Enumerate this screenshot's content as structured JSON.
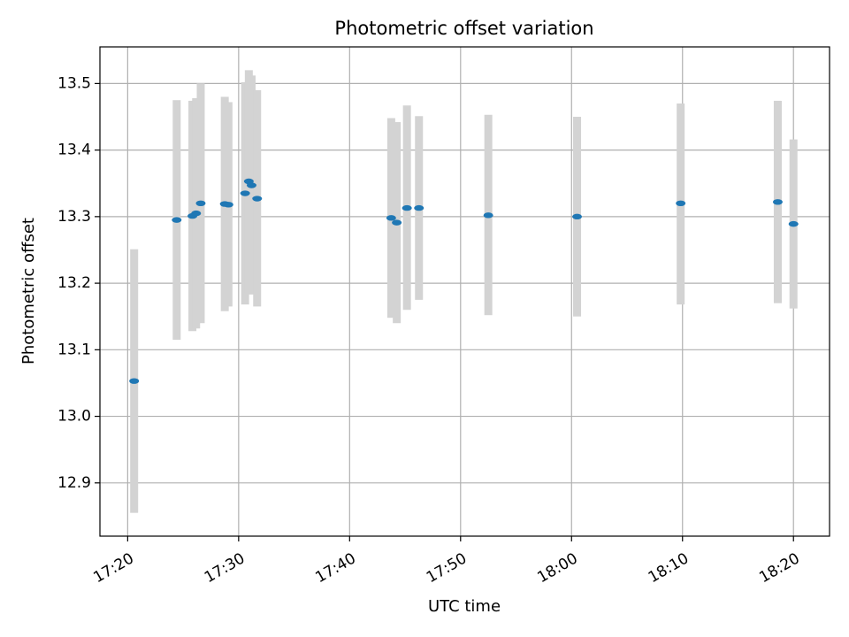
{
  "chart_data": {
    "type": "scatter",
    "title": "Photometric offset variation",
    "xlabel": "UTC time",
    "ylabel": "Photometric offset",
    "x_axis_type": "time",
    "xlim": [
      "17:17:30",
      "18:23:15"
    ],
    "ylim": [
      12.82,
      13.555
    ],
    "x_ticks": [
      "17:20",
      "17:30",
      "17:40",
      "17:50",
      "18:00",
      "18:10",
      "18:20"
    ],
    "y_ticks": [
      12.9,
      13.0,
      13.1,
      13.2,
      13.3,
      13.4,
      13.5
    ],
    "y_tick_labels": [
      "12.9",
      "13.0",
      "13.1",
      "13.2",
      "13.3",
      "13.4",
      "13.5"
    ],
    "grid": true,
    "legend": "none",
    "colors": {
      "point": "#1f77b4",
      "error_bar": "#d3d3d3",
      "grid": "#b0b0b0"
    },
    "series": [
      {
        "points": [
          {
            "x": "17:20:35",
            "y": 13.053,
            "y_low": 12.855,
            "y_high": 13.251
          },
          {
            "x": "17:24:25",
            "y": 13.295,
            "y_low": 13.115,
            "y_high": 13.475
          },
          {
            "x": "17:25:50",
            "y": 13.301,
            "y_low": 13.128,
            "y_high": 13.474
          },
          {
            "x": "17:26:10",
            "y": 13.305,
            "y_low": 13.132,
            "y_high": 13.478
          },
          {
            "x": "17:26:35",
            "y": 13.32,
            "y_low": 13.14,
            "y_high": 13.5
          },
          {
            "x": "17:28:45",
            "y": 13.319,
            "y_low": 13.158,
            "y_high": 13.48
          },
          {
            "x": "17:29:05",
            "y": 13.318,
            "y_low": 13.165,
            "y_high": 13.472
          },
          {
            "x": "17:30:35",
            "y": 13.335,
            "y_low": 13.168,
            "y_high": 13.502
          },
          {
            "x": "17:30:55",
            "y": 13.353,
            "y_low": 13.185,
            "y_high": 13.52
          },
          {
            "x": "17:31:10",
            "y": 13.347,
            "y_low": 13.183,
            "y_high": 13.512
          },
          {
            "x": "17:31:40",
            "y": 13.327,
            "y_low": 13.165,
            "y_high": 13.49
          },
          {
            "x": "17:43:45",
            "y": 13.298,
            "y_low": 13.148,
            "y_high": 13.448
          },
          {
            "x": "17:44:15",
            "y": 13.291,
            "y_low": 13.14,
            "y_high": 13.442
          },
          {
            "x": "17:45:10",
            "y": 13.313,
            "y_low": 13.16,
            "y_high": 13.467
          },
          {
            "x": "17:46:15",
            "y": 13.313,
            "y_low": 13.175,
            "y_high": 13.451
          },
          {
            "x": "17:52:30",
            "y": 13.302,
            "y_low": 13.152,
            "y_high": 13.453
          },
          {
            "x": "18:00:30",
            "y": 13.3,
            "y_low": 13.15,
            "y_high": 13.45
          },
          {
            "x": "18:09:50",
            "y": 13.32,
            "y_low": 13.168,
            "y_high": 13.47
          },
          {
            "x": "18:18:35",
            "y": 13.322,
            "y_low": 13.17,
            "y_high": 13.474
          },
          {
            "x": "18:20:00",
            "y": 13.289,
            "y_low": 13.162,
            "y_high": 13.416
          }
        ]
      }
    ]
  }
}
